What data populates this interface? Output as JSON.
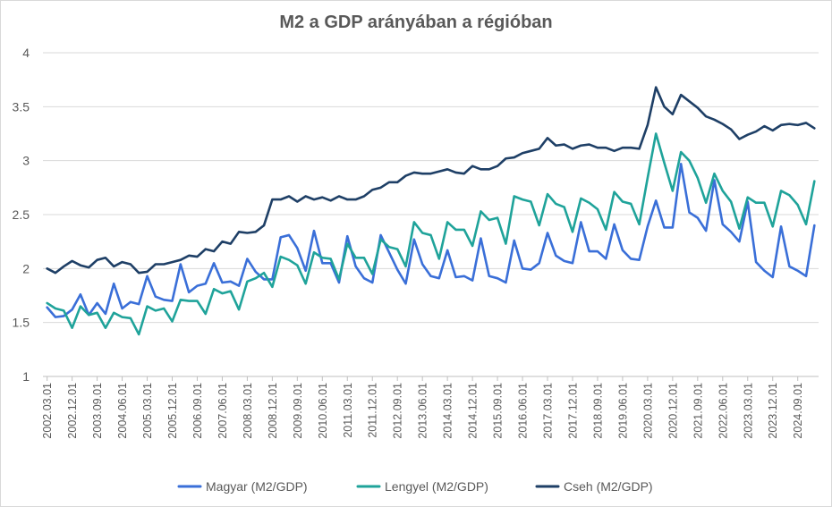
{
  "chart_data": {
    "type": "line",
    "title": "M2 a GDP arányában a régióban",
    "xlabel": "",
    "ylabel": "",
    "ylim": [
      1,
      4
    ],
    "yticks": [
      "1",
      "1.5",
      "2",
      "2.5",
      "3",
      "3.5",
      "4"
    ],
    "grid": "horizontal",
    "legend": "bottom",
    "x_tick_labels": [
      "2002.03.01",
      "2002.12.01",
      "2003.09.01",
      "2004.06.01",
      "2005.03.01",
      "2005.12.01",
      "2006.09.01",
      "2007.06.01",
      "2008.03.01",
      "2008.12.01",
      "2009.09.01",
      "2010.06.01",
      "2011.03.01",
      "2011.12.01",
      "2012.09.01",
      "2013.06.01",
      "2014.03.01",
      "2014.12.01",
      "2015.09.01",
      "2016.06.01",
      "2017.03.01",
      "2017.12.01",
      "2018.09.01",
      "2019.06.01",
      "2020.03.01",
      "2020.12.01",
      "2021.09.01",
      "2022.06.01",
      "2023.03.01",
      "2023.12.01",
      "2024.09.01"
    ],
    "x_start": "2002.03",
    "x_step": "quarterly",
    "series": [
      {
        "name": "Magyar (M2/GDP)",
        "color": "#3a6fd8",
        "values": [
          1.64,
          1.55,
          1.56,
          1.62,
          1.76,
          1.57,
          1.68,
          1.58,
          1.86,
          1.63,
          1.69,
          1.67,
          1.93,
          1.74,
          1.71,
          1.7,
          2.04,
          1.78,
          1.84,
          1.86,
          2.05,
          1.87,
          1.88,
          1.84,
          2.09,
          1.97,
          1.9,
          1.9,
          2.29,
          2.31,
          2.19,
          1.98,
          2.35,
          2.05,
          2.05,
          1.87,
          2.3,
          2.02,
          1.91,
          1.87,
          2.31,
          2.15,
          1.99,
          1.86,
          2.27,
          2.04,
          1.93,
          1.91,
          2.17,
          1.92,
          1.93,
          1.89,
          2.28,
          1.93,
          1.91,
          1.87,
          2.26,
          2.0,
          1.99,
          2.05,
          2.33,
          2.12,
          2.07,
          2.05,
          2.43,
          2.16,
          2.16,
          2.09,
          2.41,
          2.17,
          2.09,
          2.08,
          2.39,
          2.63,
          2.38,
          2.38,
          2.97,
          2.52,
          2.47,
          2.35,
          2.82,
          2.41,
          2.34,
          2.25,
          2.62,
          2.06,
          1.98,
          1.92,
          2.39,
          2.02,
          1.98,
          1.93,
          2.4
        ]
      },
      {
        "name": "Lengyel (M2/GDP)",
        "color": "#1fa39a",
        "values": [
          1.68,
          1.63,
          1.61,
          1.45,
          1.65,
          1.57,
          1.59,
          1.45,
          1.59,
          1.55,
          1.54,
          1.39,
          1.65,
          1.61,
          1.63,
          1.51,
          1.71,
          1.7,
          1.7,
          1.58,
          1.81,
          1.77,
          1.79,
          1.62,
          1.88,
          1.91,
          1.96,
          1.83,
          2.11,
          2.08,
          2.03,
          1.86,
          2.15,
          2.1,
          2.09,
          1.9,
          2.23,
          2.1,
          2.1,
          1.95,
          2.27,
          2.2,
          2.18,
          2.02,
          2.43,
          2.33,
          2.31,
          2.09,
          2.43,
          2.36,
          2.36,
          2.21,
          2.53,
          2.45,
          2.47,
          2.23,
          2.67,
          2.64,
          2.62,
          2.4,
          2.69,
          2.6,
          2.57,
          2.34,
          2.65,
          2.61,
          2.55,
          2.36,
          2.71,
          2.62,
          2.6,
          2.41,
          2.84,
          3.25,
          2.98,
          2.72,
          3.08,
          3.0,
          2.84,
          2.61,
          2.88,
          2.72,
          2.62,
          2.37,
          2.66,
          2.61,
          2.61,
          2.39,
          2.72,
          2.68,
          2.59,
          2.41,
          2.81
        ]
      },
      {
        "name": "Cseh (M2/GDP)",
        "color": "#1e3f66",
        "values": [
          2.0,
          1.96,
          2.02,
          2.07,
          2.03,
          2.01,
          2.08,
          2.1,
          2.02,
          2.06,
          2.04,
          1.96,
          1.97,
          2.04,
          2.04,
          2.06,
          2.08,
          2.12,
          2.11,
          2.18,
          2.16,
          2.25,
          2.23,
          2.34,
          2.33,
          2.34,
          2.4,
          2.64,
          2.64,
          2.67,
          2.62,
          2.67,
          2.64,
          2.66,
          2.63,
          2.67,
          2.64,
          2.64,
          2.67,
          2.73,
          2.75,
          2.8,
          2.8,
          2.86,
          2.89,
          2.88,
          2.88,
          2.9,
          2.92,
          2.89,
          2.88,
          2.95,
          2.92,
          2.92,
          2.95,
          3.02,
          3.03,
          3.07,
          3.09,
          3.11,
          3.21,
          3.14,
          3.15,
          3.11,
          3.14,
          3.15,
          3.12,
          3.12,
          3.09,
          3.12,
          3.12,
          3.11,
          3.33,
          3.68,
          3.5,
          3.43,
          3.61,
          3.55,
          3.49,
          3.41,
          3.38,
          3.34,
          3.29,
          3.2,
          3.24,
          3.27,
          3.32,
          3.28,
          3.33,
          3.34,
          3.33,
          3.35,
          3.3
        ]
      }
    ]
  }
}
